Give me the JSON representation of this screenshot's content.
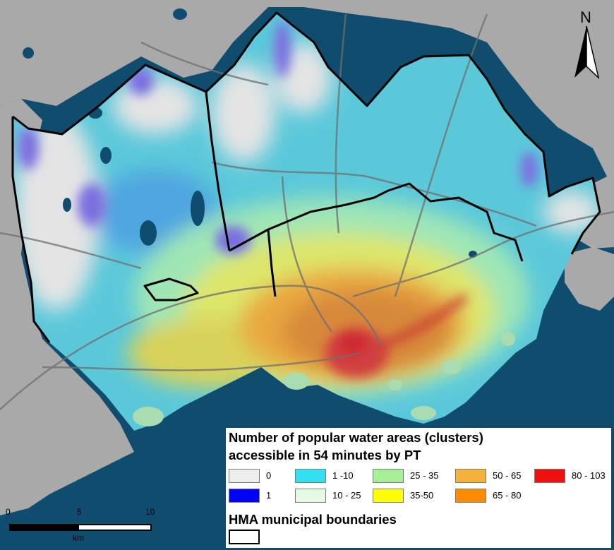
{
  "map": {
    "colors": {
      "sea": "#0f4c6e",
      "land_outside": "#a9a9a9",
      "roads": "#6f6f6f",
      "boundary": "#000000"
    }
  },
  "north_arrow": {
    "label": "N"
  },
  "scale_bar": {
    "ticks": [
      "0",
      "5",
      "10"
    ],
    "unit": "km"
  },
  "legend": {
    "title_line1": "Number of popular water areas (clusters)",
    "title_line2": "accessible in 54 minutes by PT",
    "classes": [
      {
        "label": "0",
        "color": "#eeeeee"
      },
      {
        "label": "1",
        "color": "#0000ff"
      },
      {
        "label": "1 -10",
        "color": "#33e0f2"
      },
      {
        "label": "10 - 25",
        "color": "#e4fae4"
      },
      {
        "label": "25 - 35",
        "color": "#a8f095"
      },
      {
        "label": "35-50",
        "color": "#ffff00"
      },
      {
        "label": "50 - 65",
        "color": "#f6b13a"
      },
      {
        "label": "65 - 80",
        "color": "#ff8c00"
      },
      {
        "label": "80 - 103",
        "color": "#f01010"
      }
    ],
    "boundary_label": "HMA municipal boundaries"
  }
}
